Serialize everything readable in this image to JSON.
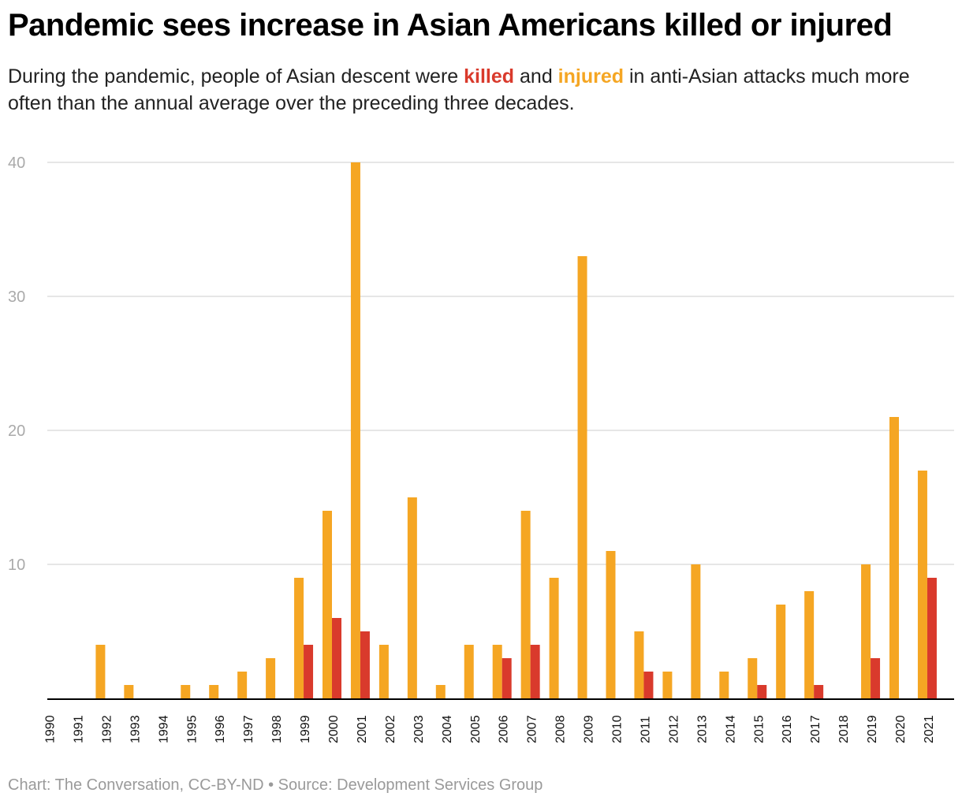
{
  "header": {
    "title": "Pandemic sees increase in Asian Americans killed or injured",
    "subtitle_part1": "During the pandemic, people of Asian descent were ",
    "subtitle_killed": "killed",
    "subtitle_part2": " and ",
    "subtitle_injured": "injured",
    "subtitle_part3": " in anti-Asian attacks much more often than the annual average over the preceding three decades."
  },
  "footer": {
    "credit": "Chart: The Conversation, CC-BY-ND • Source: Development Services Group"
  },
  "colors": {
    "injured": "#f5a623",
    "killed": "#d93a2c",
    "grid": "#dddddd",
    "axis": "#000000",
    "tick_label": "#aaaaaa"
  },
  "chart_data": {
    "type": "bar",
    "categories": [
      "1990",
      "1991",
      "1992",
      "1993",
      "1994",
      "1995",
      "1996",
      "1997",
      "1998",
      "1999",
      "2000",
      "2001",
      "2002",
      "2003",
      "2004",
      "2005",
      "2006",
      "2007",
      "2008",
      "2009",
      "2010",
      "2011",
      "2012",
      "2013",
      "2014",
      "2015",
      "2016",
      "2017",
      "2018",
      "2019",
      "2020",
      "2021"
    ],
    "series": [
      {
        "name": "injured",
        "color": "#f5a623",
        "values": [
          0,
          0,
          4,
          1,
          0,
          1,
          1,
          2,
          3,
          9,
          14,
          40,
          4,
          15,
          1,
          4,
          4,
          14,
          9,
          33,
          11,
          5,
          2,
          10,
          2,
          3,
          7,
          8,
          0,
          10,
          21,
          17
        ]
      },
      {
        "name": "killed",
        "color": "#d93a2c",
        "values": [
          0,
          0,
          0,
          0,
          0,
          0,
          0,
          0,
          0,
          4,
          6,
          5,
          0,
          0,
          0,
          0,
          3,
          4,
          0,
          0,
          0,
          2,
          0,
          0,
          0,
          1,
          0,
          1,
          0,
          3,
          0,
          9
        ]
      }
    ],
    "yticks": [
      10,
      20,
      30,
      40
    ],
    "ylim": [
      0,
      40
    ],
    "grid": true,
    "xlabel": "",
    "ylabel": ""
  }
}
